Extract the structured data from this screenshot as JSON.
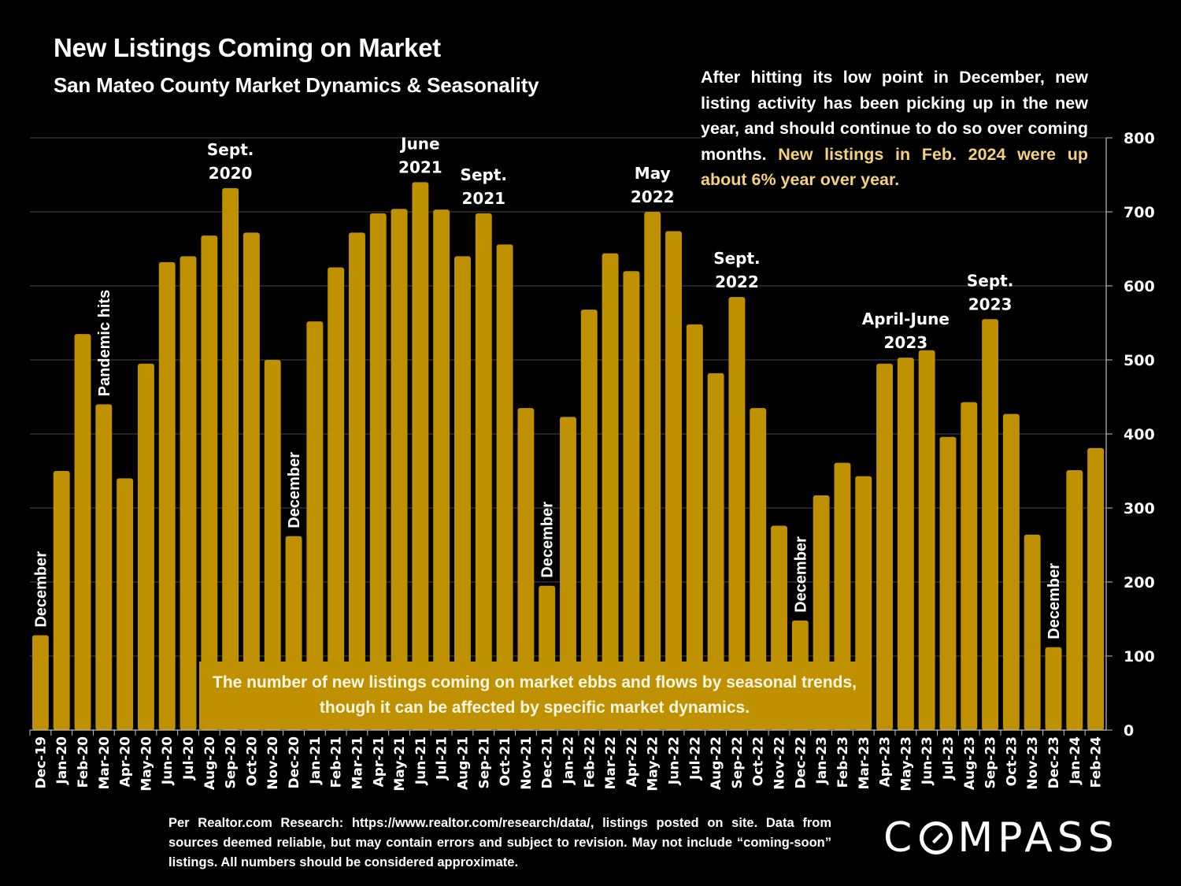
{
  "header": {
    "title": "New Listings Coming on Market",
    "subtitle": "San Mateo County Market Dynamics & Seasonality"
  },
  "commentary": {
    "text": "After hitting its low point in December, new listing activity has been picking up in the new year, and should continue to do so over coming months.",
    "highlight": "New listings in Feb. 2024 were up about 6% year over year.",
    "highlight_color": "#f6d07a"
  },
  "callout_box": {
    "text": "The number of new listings coming on market ebbs and flows by seasonal trends, though it can be affected by specific market dynamics."
  },
  "footnote": {
    "text": "Per Realtor.com Research: https://www.realtor.com/research/data/, listings posted on site. Data from sources deemed reliable, but may contain errors and subject to revision. May not include “coming-soon” listings. All numbers should be considered approximate."
  },
  "logo": {
    "before": "C",
    "after": "MPASS"
  },
  "colors": {
    "bar": "#bf9000",
    "background": "#000000",
    "gridline": "#3a3a3a",
    "text": "#ffffff"
  },
  "chart_data": {
    "type": "bar",
    "title": "New Listings Coming on Market",
    "subtitle": "San Mateo County Market Dynamics & Seasonality",
    "xlabel": "",
    "ylabel": "",
    "ylim": [
      0,
      800
    ],
    "yticks": [
      0,
      100,
      200,
      300,
      400,
      500,
      600,
      700,
      800
    ],
    "y_axis_side": "right",
    "grid": true,
    "legend": "none",
    "categories": [
      "Dec-19",
      "Jan-20",
      "Feb-20",
      "Mar-20",
      "Apr-20",
      "May-20",
      "Jun-20",
      "Jul-20",
      "Aug-20",
      "Sep-20",
      "Oct-20",
      "Nov-20",
      "Dec-20",
      "Jan-21",
      "Feb-21",
      "Mar-21",
      "Apr-21",
      "May-21",
      "Jun-21",
      "Jul-21",
      "Aug-21",
      "Sep-21",
      "Oct-21",
      "Nov-21",
      "Dec-21",
      "Jan-22",
      "Feb-22",
      "Mar-22",
      "Apr-22",
      "May-22",
      "Jun-22",
      "Jul-22",
      "Aug-22",
      "Sep-22",
      "Oct-22",
      "Nov-22",
      "Dec-22",
      "Jan-23",
      "Feb-23",
      "Mar-23",
      "Apr-23",
      "May-23",
      "Jun-23",
      "Jul-23",
      "Aug-23",
      "Sep-23",
      "Oct-23",
      "Nov-23",
      "Dec-23",
      "Jan-24",
      "Feb-24"
    ],
    "values": [
      128,
      350,
      535,
      440,
      340,
      495,
      632,
      640,
      668,
      732,
      672,
      500,
      262,
      552,
      625,
      672,
      698,
      704,
      740,
      703,
      640,
      698,
      656,
      435,
      195,
      423,
      568,
      644,
      620,
      700,
      674,
      548,
      482,
      585,
      435,
      276,
      148,
      317,
      361,
      343,
      495,
      503,
      513,
      396,
      443,
      555,
      427,
      264,
      112,
      351,
      381
    ],
    "annotations": [
      {
        "index": 0,
        "text": "December",
        "orientation": "vertical"
      },
      {
        "index": 3,
        "text": "Pandemic hits",
        "orientation": "vertical"
      },
      {
        "index": 9,
        "text": "Sept.\n2020",
        "orientation": "horizontal"
      },
      {
        "index": 12,
        "text": "December",
        "orientation": "vertical"
      },
      {
        "index": 18,
        "text": "June\n2021",
        "orientation": "horizontal"
      },
      {
        "index": 21,
        "text": "Sept.\n2021",
        "orientation": "horizontal"
      },
      {
        "index": 24,
        "text": "December",
        "orientation": "vertical"
      },
      {
        "index": 29,
        "text": "May\n2022",
        "orientation": "horizontal"
      },
      {
        "index": 33,
        "text": "Sept.\n2022",
        "orientation": "horizontal"
      },
      {
        "index": 36,
        "text": "December",
        "orientation": "vertical"
      },
      {
        "index": 41,
        "text": "April-June\n2023",
        "orientation": "horizontal"
      },
      {
        "index": 45,
        "text": "Sept.\n2023",
        "orientation": "horizontal"
      },
      {
        "index": 48,
        "text": "December",
        "orientation": "vertical"
      }
    ]
  }
}
